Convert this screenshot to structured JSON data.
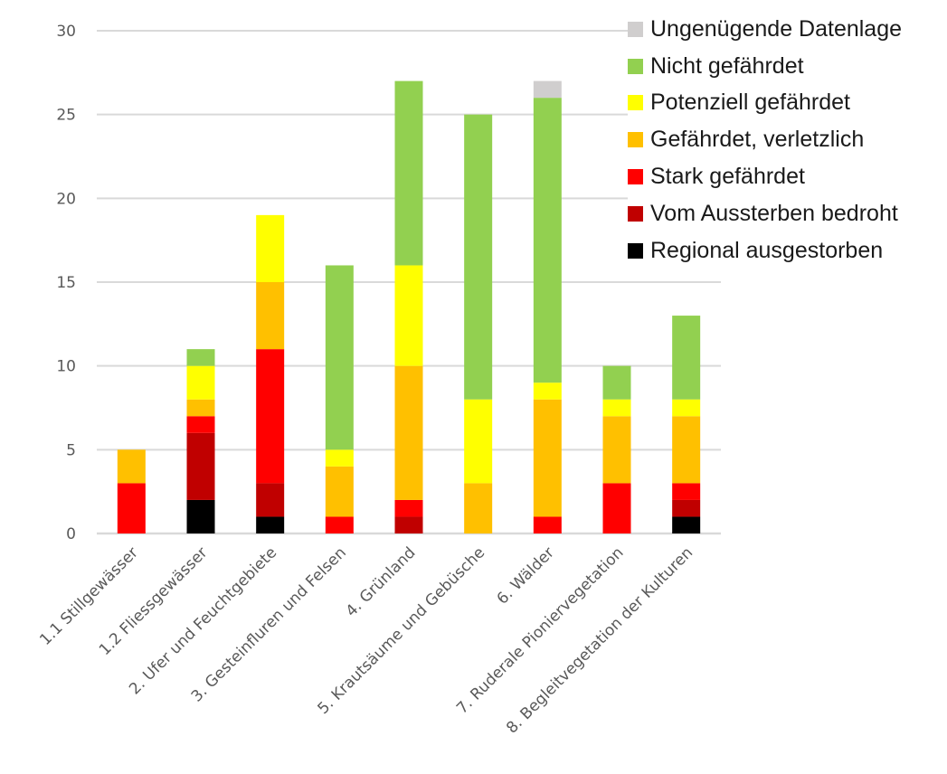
{
  "chart_data": {
    "type": "bar",
    "stacked": true,
    "title": "",
    "xlabel": "",
    "ylabel": "",
    "ylim": [
      0,
      30
    ],
    "yticks": [
      0,
      5,
      10,
      15,
      20,
      25,
      30
    ],
    "grid": true,
    "legend_position": "top-right",
    "categories": [
      "1.1 Stillgewässer",
      "1.2 Fliessgewässer",
      "2. Ufer und Feuchtgebiete",
      "3. Gesteinfluren und Felsen",
      "4. Grünland",
      "5. Krautsäume und Gebüsche",
      "6. Wälder",
      "7. Ruderale Pioniervegetation",
      "8. Begleitvegetation der Kulturen"
    ],
    "series": [
      {
        "name": "Regional ausgestorben",
        "color": "#000000",
        "values": [
          0,
          2,
          1,
          0,
          0,
          0,
          0,
          0,
          1
        ]
      },
      {
        "name": "Vom Aussterben bedroht",
        "color": "#C00000",
        "values": [
          0,
          4,
          2,
          0,
          1,
          0,
          0,
          0,
          1
        ]
      },
      {
        "name": "Stark gefährdet",
        "color": "#FF0000",
        "values": [
          3,
          1,
          8,
          1,
          1,
          0,
          1,
          3,
          1
        ]
      },
      {
        "name": "Gefährdet, verletzlich",
        "color": "#FFC000",
        "values": [
          2,
          1,
          4,
          3,
          8,
          3,
          7,
          4,
          4
        ]
      },
      {
        "name": "Potenziell gefährdet",
        "color": "#FFFF00",
        "values": [
          0,
          2,
          4,
          1,
          6,
          5,
          1,
          1,
          1
        ]
      },
      {
        "name": "Nicht gefährdet",
        "color": "#92D050",
        "values": [
          0,
          1,
          0,
          11,
          11,
          17,
          17,
          2,
          5
        ]
      },
      {
        "name": "Ungenügende Datenlage",
        "color": "#D0CECE",
        "values": [
          0,
          0,
          0,
          0,
          0,
          0,
          1,
          0,
          0
        ]
      }
    ],
    "legend_order": [
      "Ungenügende Datenlage",
      "Nicht gefährdet",
      "Potenziell gefährdet",
      "Gefährdet, verletzlich",
      "Stark gefährdet",
      "Vom Aussterben bedroht",
      "Regional ausgestorben"
    ],
    "gridline_color": "#D9D9D9",
    "tick_color": "#595959"
  }
}
